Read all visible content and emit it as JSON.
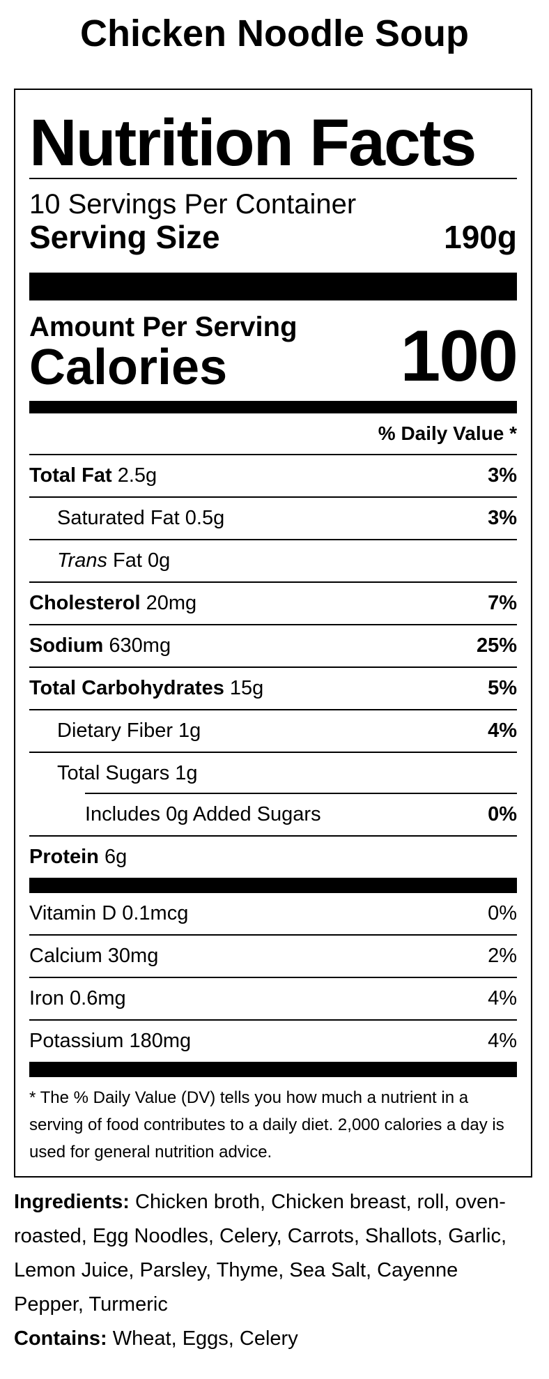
{
  "product": {
    "name": "Chicken Noodle Soup"
  },
  "label": {
    "title": "Nutrition Facts",
    "servings_per_container": "10 Servings Per Container",
    "serving_size_label": "Serving Size",
    "serving_size_value": "190g",
    "amount_per_serving": "Amount Per Serving",
    "calories_label": "Calories",
    "calories_value": "100",
    "daily_value_header": "% Daily Value *",
    "nutrients": [
      {
        "name": "Total Fat",
        "amount": " 2.5g",
        "dv": "3%"
      },
      {
        "name": "Saturated Fat",
        "amount": " 0.5g",
        "dv": "3%"
      },
      {
        "name": "Trans",
        "amount": " Fat 0g",
        "dv": ""
      },
      {
        "name": "Cholesterol",
        "amount": " 20mg",
        "dv": "7%"
      },
      {
        "name": "Sodium",
        "amount": " 630mg",
        "dv": "25%"
      },
      {
        "name": "Total Carbohydrates",
        "amount": " 15g",
        "dv": "5%"
      },
      {
        "name": "Dietary Fiber",
        "amount": " 1g",
        "dv": "4%"
      },
      {
        "name": "Total Sugars",
        "amount": " 1g",
        "dv": ""
      },
      {
        "name": "Includes 0g Added Sugars",
        "amount": "",
        "dv": "0%"
      },
      {
        "name": "Protein",
        "amount": " 6g",
        "dv": ""
      }
    ],
    "vitamins": [
      {
        "name": "Vitamin D 0.1mcg",
        "dv": "0%"
      },
      {
        "name": "Calcium 30mg",
        "dv": "2%"
      },
      {
        "name": "Iron 0.6mg",
        "dv": "4%"
      },
      {
        "name": "Potassium 180mg",
        "dv": "4%"
      }
    ],
    "footnote": "* The % Daily Value (DV) tells you how much a nutrient in a serving of food contributes to a daily diet. 2,000 calories a day is used for general nutrition advice."
  },
  "ingredients": {
    "label": "Ingredients:",
    "text": " Chicken broth, Chicken breast, roll, oven-roasted, Egg Noodles, Celery, Carrots, Shallots, Garlic, Lemon Juice, Parsley, Thyme, Sea Salt, Cayenne Pepper, Turmeric"
  },
  "contains": {
    "label": "Contains:",
    "text": " Wheat, Eggs, Celery"
  }
}
